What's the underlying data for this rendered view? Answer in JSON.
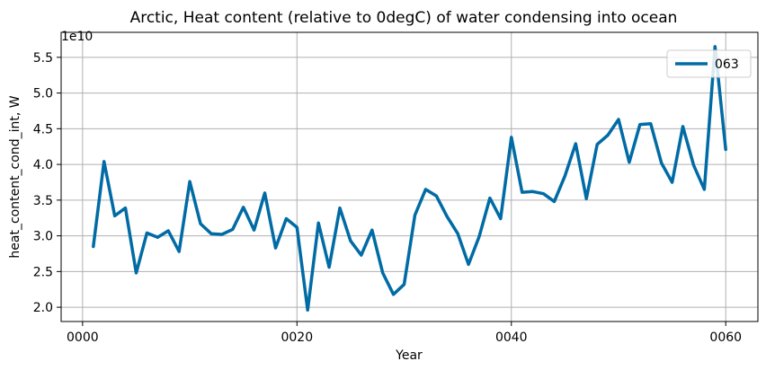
{
  "chart_data": {
    "type": "line",
    "title": "Arctic, Heat content (relative to 0degC) of water condensing into ocean",
    "xlabel": "Year",
    "ylabel": "heat_content_cond_int, W",
    "y_offset_label": "1e10",
    "x_tick_labels": [
      "0000",
      "0020",
      "0040",
      "0060"
    ],
    "x_tick_values": [
      0,
      20,
      40,
      60
    ],
    "y_tick_labels": [
      "2.0",
      "2.5",
      "3.0",
      "3.5",
      "4.0",
      "4.5",
      "5.0",
      "5.5"
    ],
    "y_tick_values": [
      2.0,
      2.5,
      3.0,
      3.5,
      4.0,
      4.5,
      5.0,
      5.5
    ],
    "xlim": [
      -2,
      63
    ],
    "ylim": [
      1.8,
      5.85
    ],
    "grid": true,
    "legend_position": "top-right",
    "series": [
      {
        "name": "063",
        "color": "#006BA4",
        "x": [
          1,
          2,
          3,
          4,
          5,
          6,
          7,
          8,
          9,
          10,
          11,
          12,
          13,
          14,
          15,
          16,
          17,
          18,
          19,
          20,
          21,
          22,
          23,
          24,
          25,
          26,
          27,
          28,
          29,
          30,
          31,
          32,
          33,
          34,
          35,
          36,
          37,
          38,
          39,
          40,
          41,
          42,
          43,
          44,
          45,
          46,
          47,
          48,
          49,
          50,
          51,
          52,
          53,
          54,
          55,
          56,
          57,
          58,
          59,
          60
        ],
        "values": [
          2.85,
          4.04,
          3.28,
          3.39,
          2.48,
          3.04,
          2.98,
          3.07,
          2.78,
          3.76,
          3.17,
          3.03,
          3.02,
          3.09,
          3.4,
          3.08,
          3.6,
          2.83,
          3.24,
          3.12,
          1.96,
          3.18,
          2.56,
          3.39,
          2.93,
          2.73,
          3.08,
          2.48,
          2.18,
          2.32,
          3.29,
          3.65,
          3.56,
          3.27,
          3.03,
          2.6,
          2.99,
          3.53,
          3.24,
          4.38,
          3.61,
          3.62,
          3.59,
          3.48,
          3.84,
          4.29,
          3.52,
          4.28,
          4.41,
          4.63,
          4.03,
          4.56,
          4.57,
          4.02,
          3.75,
          4.53,
          3.99,
          3.65,
          5.65,
          4.21
        ]
      }
    ]
  }
}
